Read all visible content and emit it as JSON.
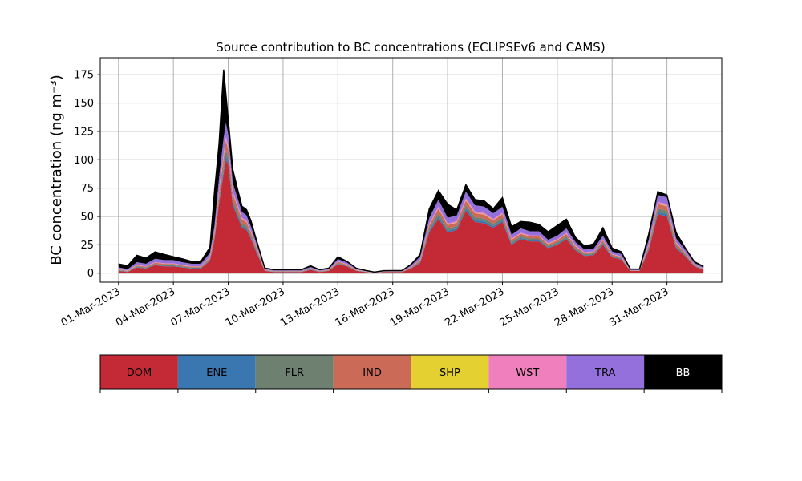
{
  "chart_data": {
    "type": "area",
    "stacked": true,
    "title": "Source contribution to BC concentrations (ECLIPSEv6 and CAMS)",
    "ylabel": "BC concentration (ng m⁻³)",
    "xlabel": "",
    "ylim": [
      -8,
      190
    ],
    "xlim": [
      "2023-02-28",
      "2023-04-03"
    ],
    "grid": true,
    "yticks": [
      0,
      25,
      50,
      75,
      100,
      125,
      150,
      175
    ],
    "xtick_labels": [
      "01-Mar-2023",
      "04-Mar-2023",
      "07-Mar-2023",
      "10-Mar-2023",
      "13-Mar-2023",
      "16-Mar-2023",
      "19-Mar-2023",
      "22-Mar-2023",
      "25-Mar-2023",
      "28-Mar-2023",
      "31-Mar-2023"
    ],
    "xtick_dates": [
      "2023-03-01",
      "2023-03-04",
      "2023-03-07",
      "2023-03-10",
      "2023-03-13",
      "2023-03-16",
      "2023-03-19",
      "2023-03-22",
      "2023-03-25",
      "2023-03-28",
      "2023-03-31"
    ],
    "x": [
      "2023-03-01",
      "2023-03-01 12:00",
      "2023-03-02",
      "2023-03-02 12:00",
      "2023-03-03",
      "2023-03-03 12:00",
      "2023-03-04",
      "2023-03-04 12:00",
      "2023-03-05",
      "2023-03-05 12:00",
      "2023-03-06",
      "2023-03-06 06:00",
      "2023-03-06 12:00",
      "2023-03-06 18:00",
      "2023-03-06 21:00",
      "2023-03-07",
      "2023-03-07 03:00",
      "2023-03-07 06:00",
      "2023-03-07 12:00",
      "2023-03-07 18:00",
      "2023-03-08",
      "2023-03-08 06:00",
      "2023-03-08 12:00",
      "2023-03-09",
      "2023-03-09 12:00",
      "2023-03-10",
      "2023-03-10 12:00",
      "2023-03-11",
      "2023-03-11 12:00",
      "2023-03-12",
      "2023-03-12 12:00",
      "2023-03-13",
      "2023-03-13 12:00",
      "2023-03-14",
      "2023-03-14 12:00",
      "2023-03-15",
      "2023-03-15 12:00",
      "2023-03-16",
      "2023-03-16 12:00",
      "2023-03-17",
      "2023-03-17 12:00",
      "2023-03-18",
      "2023-03-18 12:00",
      "2023-03-19",
      "2023-03-19 12:00",
      "2023-03-20",
      "2023-03-20 12:00",
      "2023-03-21",
      "2023-03-21 12:00",
      "2023-03-22",
      "2023-03-22 12:00",
      "2023-03-23",
      "2023-03-23 12:00",
      "2023-03-24",
      "2023-03-24 12:00",
      "2023-03-25",
      "2023-03-25 12:00",
      "2023-03-26",
      "2023-03-26 12:00",
      "2023-03-27",
      "2023-03-27 12:00",
      "2023-03-28",
      "2023-03-28 12:00",
      "2023-03-29",
      "2023-03-29 12:00",
      "2023-03-30",
      "2023-03-30 12:00",
      "2023-03-31",
      "2023-03-31 12:00",
      "2023-04-01",
      "2023-04-01 12:00",
      "2023-04-02"
    ],
    "series": [
      {
        "name": "DOM",
        "color": "#c42a35",
        "values": [
          2,
          1,
          5,
          4,
          7,
          6,
          6,
          5,
          4,
          4,
          11,
          30,
          62,
          88,
          100,
          95,
          78,
          60,
          50,
          40,
          38,
          30,
          20,
          2,
          1,
          1,
          1,
          1,
          3,
          1,
          2,
          8,
          6,
          2,
          1,
          0,
          1,
          1,
          1,
          4,
          9,
          36,
          48,
          36,
          38,
          55,
          45,
          44,
          40,
          45,
          25,
          30,
          28,
          28,
          22,
          25,
          30,
          20,
          15,
          16,
          25,
          14,
          12,
          2,
          2,
          20,
          52,
          50,
          22,
          15,
          6,
          3
        ]
      },
      {
        "name": "ENE",
        "color": "#3a77b0",
        "values": [
          0.3,
          0.2,
          0.4,
          0.4,
          0.5,
          0.5,
          0.5,
          0.4,
          0.4,
          0.4,
          0.6,
          1,
          2,
          3,
          4,
          3,
          3,
          2,
          2,
          1.5,
          1.5,
          1.2,
          1,
          0.2,
          0.2,
          0.2,
          0.2,
          0.2,
          0.3,
          0.2,
          0.2,
          0.4,
          0.3,
          0.2,
          0.1,
          0.1,
          0.1,
          0.1,
          0.1,
          0.3,
          0.6,
          1.5,
          2,
          1.5,
          1.5,
          2,
          1.8,
          1.7,
          1.5,
          1.6,
          1,
          1,
          1,
          1,
          0.8,
          0.9,
          1,
          0.8,
          0.6,
          0.6,
          0.9,
          0.5,
          0.5,
          0.1,
          0.1,
          1,
          2,
          2,
          1,
          0.6,
          0.3,
          0.2
        ]
      },
      {
        "name": "FLR",
        "color": "#6e8070",
        "values": [
          0.5,
          0.4,
          0.6,
          0.6,
          0.7,
          0.7,
          0.7,
          0.6,
          0.6,
          0.6,
          1,
          2,
          3,
          4,
          5,
          4,
          4,
          3,
          3,
          2.5,
          2.5,
          2,
          1.5,
          0.3,
          0.3,
          0.3,
          0.3,
          0.3,
          0.4,
          0.3,
          0.3,
          0.6,
          0.5,
          0.3,
          0.2,
          0.2,
          0.2,
          0.2,
          0.2,
          0.4,
          0.8,
          2,
          3,
          2,
          2,
          3,
          2.5,
          2.5,
          2,
          2.2,
          1.5,
          1.5,
          1.5,
          1.5,
          1.2,
          1.3,
          1.5,
          1.2,
          1,
          1,
          1.3,
          0.8,
          0.8,
          0.2,
          0.2,
          1.5,
          3,
          3,
          1.5,
          1,
          0.5,
          0.3
        ]
      },
      {
        "name": "IND",
        "color": "#cc6a58",
        "values": [
          0.5,
          0.4,
          0.8,
          0.7,
          1,
          1,
          1,
          0.8,
          0.7,
          0.7,
          1.5,
          3,
          5,
          7,
          8,
          7,
          6,
          5,
          4,
          3.5,
          3,
          2.5,
          2,
          0.4,
          0.3,
          0.3,
          0.3,
          0.3,
          0.5,
          0.3,
          0.4,
          1,
          0.8,
          0.4,
          0.2,
          0.1,
          0.2,
          0.2,
          0.2,
          0.6,
          1.2,
          3,
          4,
          3,
          3,
          4,
          3.5,
          3.5,
          3,
          3.2,
          2,
          2.2,
          2,
          2,
          1.6,
          1.8,
          2.2,
          1.6,
          1.2,
          1.3,
          1.8,
          1.1,
          1,
          0.2,
          0.2,
          2,
          4,
          4,
          2,
          1.2,
          0.6,
          0.3
        ]
      },
      {
        "name": "SHP",
        "color": "#e5d032",
        "values": [
          0.1,
          0.1,
          0.1,
          0.1,
          0.1,
          0.1,
          0.1,
          0.1,
          0.1,
          0.1,
          0.2,
          0.3,
          0.4,
          0.5,
          0.5,
          0.5,
          0.4,
          0.4,
          0.3,
          0.3,
          0.3,
          0.2,
          0.2,
          0.05,
          0.05,
          0.05,
          0.05,
          0.05,
          0.05,
          0.05,
          0.05,
          0.1,
          0.1,
          0.05,
          0.05,
          0,
          0,
          0,
          0,
          0.05,
          0.1,
          0.3,
          0.3,
          0.3,
          0.3,
          0.4,
          0.3,
          0.3,
          0.3,
          0.3,
          0.2,
          0.2,
          0.2,
          0.2,
          0.2,
          0.2,
          0.2,
          0.2,
          0.1,
          0.1,
          0.2,
          0.1,
          0.1,
          0,
          0,
          0.2,
          0.4,
          0.4,
          0.2,
          0.1,
          0.05,
          0.05
        ]
      },
      {
        "name": "WST",
        "color": "#f07fbd",
        "values": [
          0.2,
          0.2,
          0.3,
          0.3,
          0.4,
          0.4,
          0.4,
          0.3,
          0.3,
          0.3,
          0.5,
          1,
          2,
          3,
          3,
          3,
          2.5,
          2,
          1.5,
          1.2,
          1.2,
          1,
          0.8,
          0.2,
          0.1,
          0.1,
          0.1,
          0.1,
          0.2,
          0.1,
          0.1,
          0.3,
          0.2,
          0.1,
          0.1,
          0.05,
          0.05,
          0.05,
          0.05,
          0.2,
          0.4,
          1,
          1.5,
          1,
          1,
          1.5,
          1.2,
          1.2,
          1,
          1.1,
          0.7,
          0.8,
          0.7,
          0.7,
          0.6,
          0.6,
          0.8,
          0.6,
          0.4,
          0.4,
          0.6,
          0.4,
          0.4,
          0.1,
          0.1,
          0.6,
          1.5,
          1.5,
          0.6,
          0.4,
          0.2,
          0.1
        ]
      },
      {
        "name": "TRA",
        "color": "#9370db",
        "values": [
          1.5,
          1.2,
          2.5,
          2.2,
          3,
          2.8,
          2.8,
          2.4,
          2.2,
          2.2,
          3,
          5,
          10,
          14,
          12,
          10,
          8,
          7,
          6,
          5,
          4.5,
          4,
          3,
          0.8,
          0.6,
          0.6,
          0.6,
          0.6,
          1,
          0.6,
          0.8,
          2,
          1.5,
          0.8,
          0.5,
          0.3,
          0.4,
          0.5,
          0.4,
          1.2,
          2.5,
          5,
          6,
          5,
          5,
          6,
          5.5,
          5.5,
          5,
          5.2,
          3.5,
          3.8,
          3.5,
          3.5,
          3,
          3.2,
          3.8,
          3,
          2.4,
          2.5,
          3.2,
          2.2,
          2,
          0.5,
          0.5,
          4,
          6,
          6,
          3.5,
          2.4,
          1.4,
          1
        ]
      },
      {
        "name": "BB",
        "color": "#000000",
        "values": [
          3,
          3,
          6,
          5,
          6,
          5,
          3,
          3,
          2,
          2,
          5,
          30,
          30,
          60,
          25,
          13,
          12,
          12,
          8,
          5,
          5,
          5,
          3,
          0.5,
          0.5,
          0.5,
          0.5,
          0.5,
          1,
          0.5,
          0.5,
          2,
          1,
          0.5,
          0.3,
          0.2,
          0.2,
          0.2,
          0.3,
          1,
          2,
          8,
          8,
          12,
          5,
          6,
          5,
          5,
          4,
          8,
          7,
          6,
          8,
          6,
          7,
          9,
          8,
          4,
          3,
          4,
          7,
          3,
          2,
          0.5,
          0.5,
          5,
          3,
          2,
          5,
          1.5,
          1,
          1
        ]
      }
    ]
  }
}
